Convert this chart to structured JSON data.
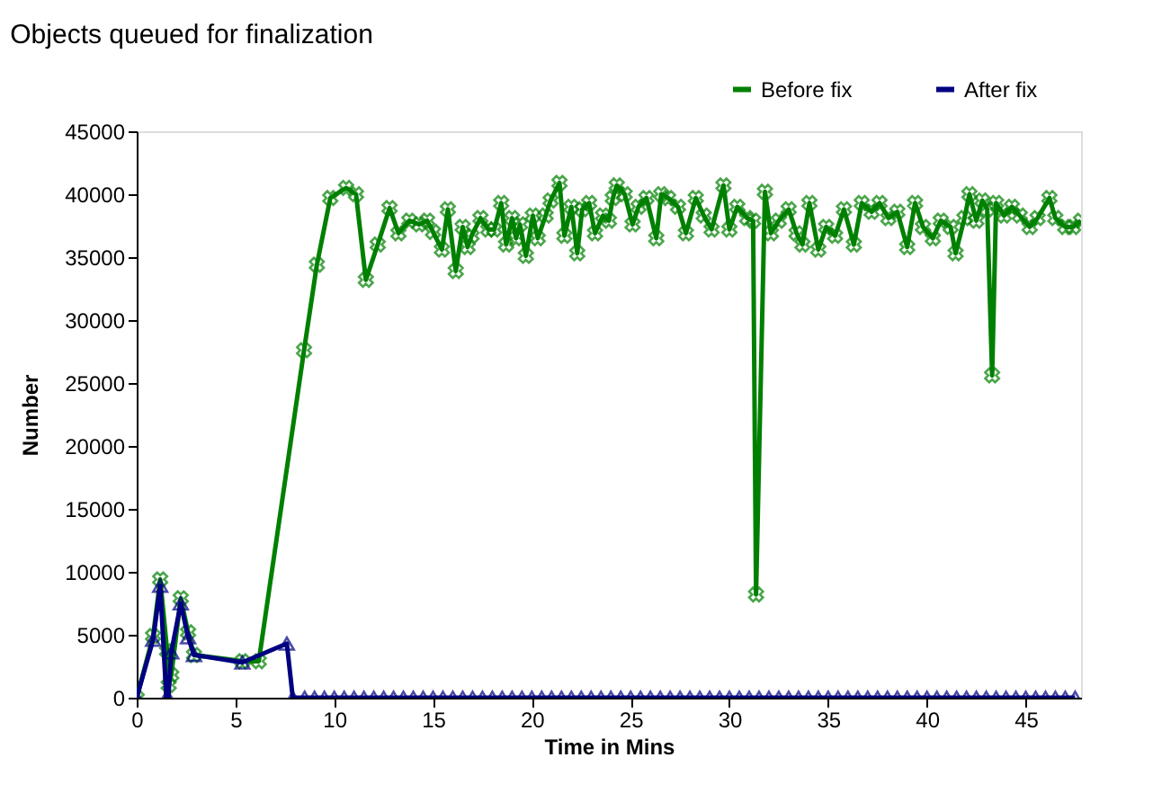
{
  "chart_data": {
    "type": "line",
    "title": "Objects queued for finalization",
    "xlabel": "Time in Mins",
    "ylabel": "Number",
    "xlim": [
      0,
      47.8
    ],
    "xticks": [
      0,
      5,
      10,
      15,
      20,
      25,
      30,
      35,
      40,
      45
    ],
    "ylim": [
      0,
      45000
    ],
    "yticks": [
      0,
      5000,
      10000,
      15000,
      20000,
      25000,
      30000,
      35000,
      40000,
      45000
    ],
    "grid": false,
    "legend": "top right",
    "line_style": "solid",
    "series": [
      {
        "name": "Before fix",
        "color": "#008000",
        "marker": "cross",
        "x": [
          0,
          0.83,
          1.19,
          1.54,
          1.62,
          1.75,
          2.23,
          2.6,
          2.9,
          5.35,
          6.18,
          8.47,
          9.12,
          9.8,
          10.6,
          11.1,
          11.6,
          12.2,
          12.8,
          13.25,
          13.8,
          14.3,
          14.7,
          15.0,
          15.45,
          15.75,
          16.15,
          16.5,
          16.75,
          16.95,
          17.4,
          17.8,
          18.1,
          18.45,
          18.7,
          19.0,
          19.2,
          19.4,
          19.7,
          20.05,
          20.3,
          20.7,
          20.95,
          21.4,
          21.65,
          22.0,
          22.3,
          22.55,
          22.9,
          23.2,
          23.6,
          23.9,
          24.1,
          24.3,
          24.7,
          25.1,
          25.4,
          25.8,
          26.3,
          26.55,
          26.9,
          27.4,
          27.8,
          28.3,
          28.7,
          29.1,
          29.7,
          30.0,
          30.4,
          30.9,
          31.2,
          31.35,
          31.8,
          32.1,
          32.5,
          33.0,
          33.4,
          33.7,
          34.05,
          34.5,
          34.9,
          35.35,
          35.8,
          36.3,
          36.7,
          37.2,
          37.6,
          38.05,
          38.5,
          39.0,
          39.4,
          39.8,
          40.3,
          40.7,
          41.2,
          41.45,
          41.9,
          42.15,
          42.5,
          42.8,
          43.05,
          43.3,
          43.5,
          43.9,
          44.3,
          44.7,
          45.2,
          45.6,
          46.2,
          46.5,
          47.0,
          47.4,
          47.8
        ],
        "values": [
          0,
          4900,
          9400,
          3700,
          1000,
          1800,
          7900,
          5200,
          3400,
          2900,
          2900,
          27600,
          34400,
          39700,
          40500,
          40000,
          33200,
          36000,
          38900,
          36900,
          37900,
          37600,
          37900,
          37000,
          35600,
          38800,
          33900,
          37400,
          35800,
          36700,
          38100,
          37200,
          37200,
          39300,
          36000,
          38100,
          36500,
          37600,
          35100,
          38300,
          36500,
          38300,
          39500,
          40900,
          36700,
          39000,
          35300,
          38800,
          39300,
          36900,
          38300,
          37900,
          39700,
          40700,
          40000,
          37600,
          39000,
          39700,
          36500,
          40000,
          39700,
          39000,
          36900,
          39700,
          38300,
          37200,
          40700,
          37200,
          39000,
          38100,
          37900,
          8200,
          40200,
          36900,
          37900,
          38800,
          36900,
          36000,
          39300,
          35600,
          37400,
          36700,
          38800,
          36000,
          39300,
          38600,
          39300,
          38100,
          38600,
          35800,
          39300,
          37400,
          36500,
          37900,
          37400,
          35300,
          38100,
          40000,
          37900,
          39500,
          38800,
          25600,
          39300,
          38300,
          39000,
          38300,
          37400,
          38100,
          39700,
          38100,
          37400,
          37400,
          37900
        ]
      },
      {
        "name": "After fix",
        "color": "#000080",
        "marker": "triangle",
        "x": [
          0,
          0.83,
          1.19,
          1.5,
          1.6,
          1.75,
          2.23,
          2.6,
          2.9,
          5.35,
          7.6,
          7.9,
          8.5,
          9,
          9.5,
          10,
          10.5,
          11,
          11.5,
          12,
          12.5,
          13,
          13.5,
          14,
          14.5,
          15,
          15.5,
          16,
          16.5,
          17,
          17.5,
          18,
          18.5,
          19,
          19.5,
          20,
          20.5,
          21,
          21.5,
          22,
          22.5,
          23,
          23.5,
          24,
          24.5,
          25,
          25.5,
          26,
          26.5,
          27,
          27.5,
          28,
          28.5,
          29,
          29.5,
          30,
          30.5,
          31,
          31.5,
          32,
          32.5,
          33,
          33.5,
          34,
          34.5,
          35,
          35.5,
          36,
          36.5,
          37,
          37.5,
          38,
          38.5,
          39,
          39.5,
          40,
          40.5,
          41,
          41.5,
          42,
          42.5,
          43,
          43.5,
          44,
          44.5,
          45,
          45.5,
          46,
          46.5,
          47,
          47.5
        ],
        "values": [
          0,
          4600,
          8900,
          0,
          0,
          3600,
          7500,
          4800,
          3400,
          2800,
          4300,
          0,
          0,
          0,
          0,
          0,
          0,
          0,
          0,
          0,
          0,
          0,
          0,
          0,
          0,
          0,
          0,
          0,
          0,
          0,
          0,
          0,
          0,
          0,
          0,
          0,
          0,
          0,
          0,
          0,
          0,
          0,
          0,
          0,
          0,
          0,
          0,
          0,
          0,
          0,
          0,
          0,
          0,
          0,
          0,
          0,
          0,
          0,
          0,
          0,
          0,
          0,
          0,
          0,
          0,
          0,
          0,
          0,
          0,
          0,
          0,
          0,
          0,
          0,
          0,
          0,
          0,
          0,
          0,
          0,
          0,
          0,
          0,
          0,
          0,
          0,
          0,
          0,
          0,
          0,
          0
        ]
      }
    ]
  }
}
